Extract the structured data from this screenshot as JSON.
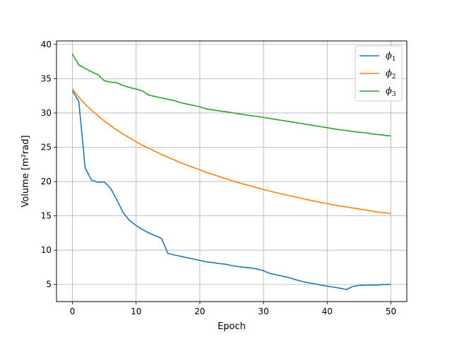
{
  "chart_data": {
    "type": "line",
    "title": "",
    "xlabel": "Epoch",
    "ylabel": "Volume [m²rad]",
    "xlim": [
      -2.5,
      52.5
    ],
    "ylim": [
      2.5,
      40.5
    ],
    "xticks": [
      0,
      10,
      20,
      30,
      40,
      50
    ],
    "yticks": [
      5,
      10,
      15,
      20,
      25,
      30,
      35,
      40
    ],
    "grid": true,
    "legend_position": "top-right",
    "x": [
      0,
      1,
      2,
      3,
      4,
      5,
      6,
      7,
      8,
      9,
      10,
      11,
      12,
      13,
      14,
      15,
      16,
      17,
      18,
      19,
      20,
      21,
      22,
      23,
      24,
      25,
      26,
      27,
      28,
      29,
      30,
      31,
      32,
      33,
      34,
      35,
      36,
      37,
      38,
      39,
      40,
      41,
      42,
      43,
      44,
      45,
      46,
      47,
      48,
      49,
      50
    ],
    "series": [
      {
        "name": "ϕ1",
        "color": "#1f77b4",
        "values": [
          33.2,
          31.7,
          22.0,
          20.2,
          19.9,
          19.95,
          19.0,
          17.3,
          15.4,
          14.3,
          13.6,
          13.0,
          12.5,
          12.1,
          11.7,
          9.5,
          9.3,
          9.1,
          8.9,
          8.7,
          8.5,
          8.3,
          8.2,
          8.05,
          7.95,
          7.75,
          7.6,
          7.5,
          7.4,
          7.25,
          7.0,
          6.6,
          6.4,
          6.2,
          6.0,
          5.7,
          5.45,
          5.25,
          5.1,
          4.9,
          4.75,
          4.6,
          4.45,
          4.25,
          4.7,
          4.85,
          4.9,
          4.9,
          4.9,
          5.0,
          5.0
        ]
      },
      {
        "name": "ϕ2",
        "color": "#ff7f0e",
        "values": [
          33.5,
          32.3,
          31.3,
          30.4,
          29.6,
          28.85,
          28.15,
          27.5,
          26.9,
          26.35,
          25.8,
          25.3,
          24.85,
          24.4,
          23.95,
          23.55,
          23.15,
          22.75,
          22.4,
          22.05,
          21.7,
          21.35,
          21.05,
          20.75,
          20.45,
          20.15,
          19.85,
          19.6,
          19.35,
          19.1,
          18.85,
          18.6,
          18.4,
          18.15,
          17.95,
          17.75,
          17.55,
          17.35,
          17.15,
          16.95,
          16.8,
          16.6,
          16.45,
          16.3,
          16.15,
          16.0,
          15.85,
          15.7,
          15.55,
          15.45,
          15.3
        ]
      },
      {
        "name": "ϕ3",
        "color": "#2ca02c",
        "values": [
          38.6,
          37.0,
          36.5,
          36.0,
          35.6,
          34.7,
          34.5,
          34.4,
          34.0,
          33.7,
          33.5,
          33.2,
          32.6,
          32.4,
          32.2,
          32.0,
          31.8,
          31.5,
          31.3,
          31.1,
          30.9,
          30.6,
          30.45,
          30.3,
          30.2,
          30.05,
          29.9,
          29.75,
          29.6,
          29.5,
          29.35,
          29.2,
          29.05,
          28.9,
          28.75,
          28.6,
          28.45,
          28.3,
          28.15,
          28.0,
          27.85,
          27.7,
          27.55,
          27.45,
          27.3,
          27.2,
          27.1,
          26.95,
          26.85,
          26.75,
          26.65
        ]
      }
    ]
  }
}
